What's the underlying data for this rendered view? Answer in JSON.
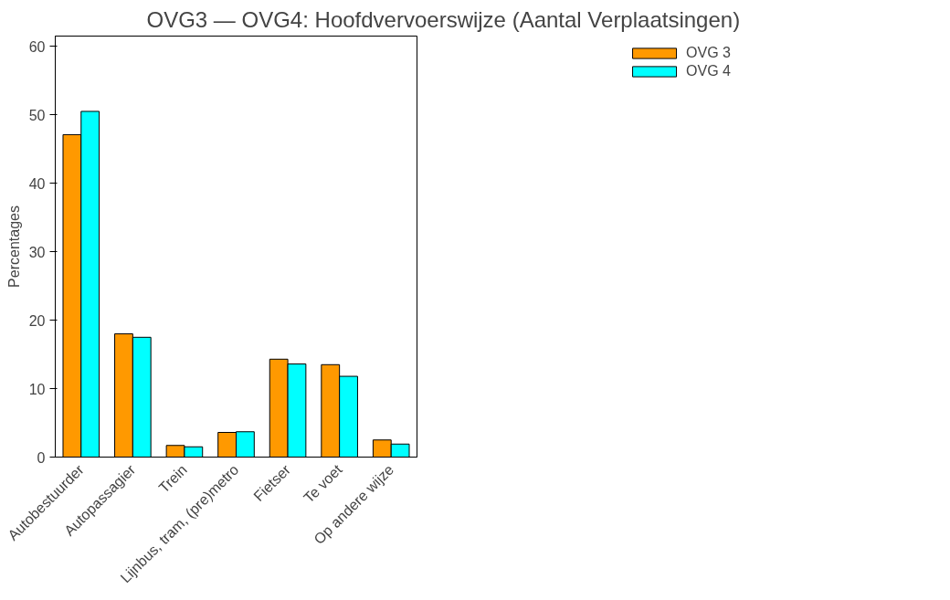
{
  "chart_data": {
    "type": "bar",
    "title": "OVG3 — OVG4: Hoofdvervoerswijze (Aantal Verplaatsingen)",
    "ylabel": "Percentages",
    "categories": [
      "Autobestuurder",
      "Autopassagier",
      "Trein",
      "Lijnbus, tram, (pre)metro",
      "Fietser",
      "Te voet",
      "Op andere wijze"
    ],
    "series": [
      {
        "name": "OVG 3",
        "color": "#ff9900",
        "values": [
          47.1,
          18.0,
          1.7,
          3.6,
          14.3,
          13.5,
          2.5
        ]
      },
      {
        "name": "OVG 4",
        "color": "#00ffff",
        "values": [
          50.5,
          17.5,
          1.5,
          3.7,
          13.6,
          11.8,
          1.9
        ]
      }
    ],
    "ylim": [
      0,
      61.5
    ],
    "yticks": [
      0,
      10,
      20,
      30,
      40,
      50,
      60
    ],
    "grid": false,
    "legend": "top right"
  }
}
